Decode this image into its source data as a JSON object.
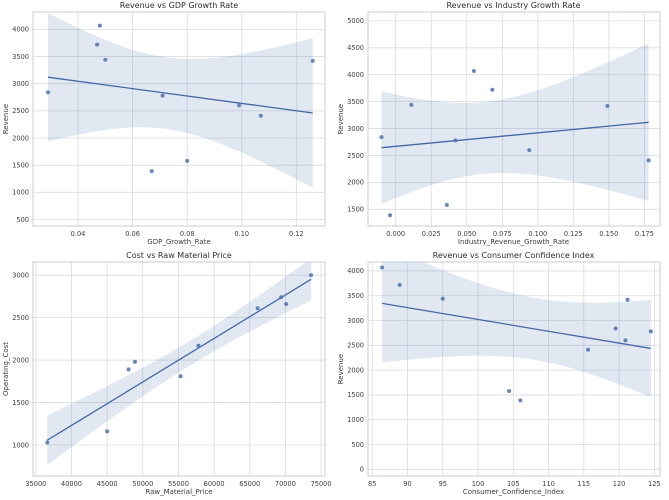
{
  "figure": {
    "background": "#ffffff",
    "style": {
      "point_color": "#4c72b0",
      "point_opacity": 0.85,
      "line_color": "#4468a8",
      "band_color": "rgba(76,114,176,0.16)",
      "grid_color": "#d8dbe2",
      "spine_color": "#c9ccd4",
      "tick_color": "#3d3d3d",
      "title_color": "#2f2f2f"
    }
  },
  "chart_data": [
    {
      "type": "scatter",
      "regression": true,
      "ci": 95,
      "title": "Revenue vs GDP Growth Rate",
      "xlabel": "GDP_Growth_Rate",
      "ylabel": "Revenue",
      "xlim": [
        0.0235,
        0.1305
      ],
      "ylim": [
        380,
        4320
      ],
      "xticks": {
        "values": [
          0.04,
          0.06,
          0.08,
          0.1,
          0.12
        ],
        "labels": [
          "0.04",
          "0.06",
          "0.08",
          "0.10",
          "0.12"
        ]
      },
      "yticks": {
        "values": [
          500,
          1000,
          1500,
          2000,
          2500,
          3000,
          3500,
          4000
        ],
        "labels": [
          "500",
          "1000",
          "1500",
          "2000",
          "2500",
          "3000",
          "3500",
          "4000"
        ]
      },
      "points": [
        [
          0.029,
          2840
        ],
        [
          0.048,
          4070
        ],
        [
          0.047,
          3720
        ],
        [
          0.05,
          3440
        ],
        [
          0.071,
          2780
        ],
        [
          0.067,
          1390
        ],
        [
          0.08,
          1580
        ],
        [
          0.099,
          2600
        ],
        [
          0.107,
          2410
        ],
        [
          0.126,
          3420
        ]
      ]
    },
    {
      "type": "scatter",
      "regression": true,
      "ci": 95,
      "title": "Revenue vs Industry Growth Rate",
      "xlabel": "Industry_Revenue_Growth_Rate",
      "ylabel": "Revenue",
      "xlim": [
        -0.0195,
        0.186
      ],
      "ylim": [
        1190,
        5165
      ],
      "xticks": {
        "values": [
          0.0,
          0.025,
          0.05,
          0.075,
          0.1,
          0.125,
          0.15,
          0.175
        ],
        "labels": [
          "0.000",
          "0.025",
          "0.050",
          "0.075",
          "0.100",
          "0.125",
          "0.150",
          "0.175"
        ]
      },
      "yticks": {
        "values": [
          1500,
          2000,
          2500,
          3000,
          3500,
          4000,
          4500,
          5000
        ],
        "labels": [
          "1500",
          "2000",
          "2500",
          "3000",
          "3500",
          "4000",
          "4500",
          "5000"
        ]
      },
      "points": [
        [
          -0.01,
          2840
        ],
        [
          -0.004,
          1390
        ],
        [
          0.011,
          3440
        ],
        [
          0.036,
          1580
        ],
        [
          0.042,
          2780
        ],
        [
          0.055,
          4070
        ],
        [
          0.068,
          3720
        ],
        [
          0.094,
          2600
        ],
        [
          0.149,
          3420
        ],
        [
          0.178,
          2410
        ]
      ]
    },
    {
      "type": "scatter",
      "regression": true,
      "ci": 95,
      "title": "Cost vs Raw Material Price",
      "xlabel": "Raw_Material_Price",
      "ylabel": "Operating_Cost",
      "xlim": [
        34600,
        75550
      ],
      "ylim": [
        635,
        3155
      ],
      "xticks": {
        "values": [
          35000,
          40000,
          45000,
          50000,
          55000,
          60000,
          65000,
          70000,
          75000
        ],
        "labels": [
          "35000",
          "40000",
          "45000",
          "50000",
          "55000",
          "60000",
          "65000",
          "70000",
          "75000"
        ]
      },
      "yticks": {
        "values": [
          1000,
          1500,
          2000,
          2500,
          3000
        ],
        "labels": [
          "1000",
          "1500",
          "2000",
          "2500",
          "3000"
        ]
      },
      "points": [
        [
          36600,
          1030
        ],
        [
          45000,
          1160
        ],
        [
          48000,
          1890
        ],
        [
          48900,
          1980
        ],
        [
          55300,
          1810
        ],
        [
          57800,
          2170
        ],
        [
          66100,
          2610
        ],
        [
          69400,
          2740
        ],
        [
          70100,
          2660
        ],
        [
          73600,
          3000
        ]
      ]
    },
    {
      "type": "scatter",
      "regression": true,
      "ci": 95,
      "title": "Revenue vs Consumer Confidence Index",
      "xlabel": "Consumer_Confidence_Index",
      "ylabel": "Revenue",
      "xlim": [
        84.4,
        125.8
      ],
      "ylim": [
        -135,
        4180
      ],
      "xticks": {
        "values": [
          85,
          90,
          95,
          100,
          105,
          110,
          115,
          120,
          125
        ],
        "labels": [
          "85",
          "90",
          "95",
          "100",
          "105",
          "110",
          "115",
          "120",
          "125"
        ]
      },
      "yticks": {
        "values": [
          0,
          500,
          1000,
          1500,
          2000,
          2500,
          3000,
          3500,
          4000
        ],
        "labels": [
          "0",
          "500",
          "1000",
          "1500",
          "2000",
          "2500",
          "3000",
          "3500",
          "4000"
        ]
      },
      "points": [
        [
          86.4,
          4070
        ],
        [
          88.9,
          3720
        ],
        [
          95.0,
          3440
        ],
        [
          104.4,
          1580
        ],
        [
          106.0,
          1390
        ],
        [
          115.6,
          2410
        ],
        [
          119.5,
          2840
        ],
        [
          121.2,
          3420
        ],
        [
          120.9,
          2600
        ],
        [
          124.5,
          2780
        ]
      ]
    }
  ]
}
